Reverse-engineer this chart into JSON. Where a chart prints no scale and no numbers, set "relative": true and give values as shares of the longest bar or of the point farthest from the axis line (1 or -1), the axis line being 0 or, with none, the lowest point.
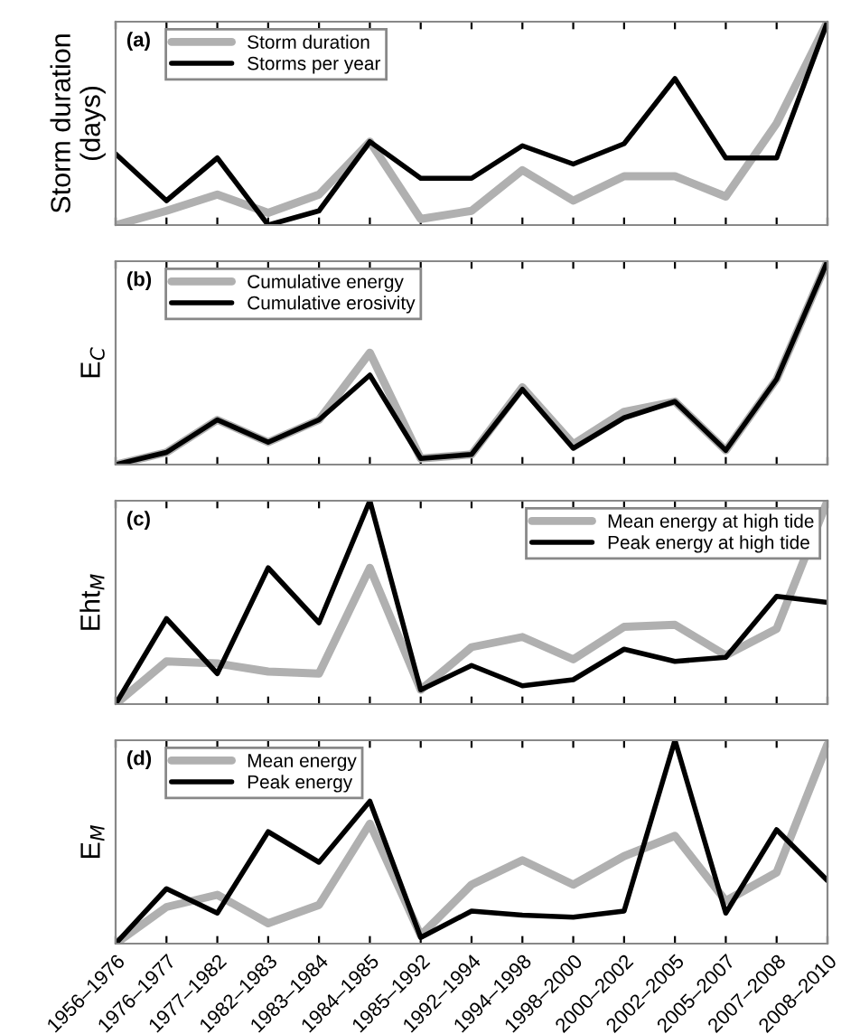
{
  "chart_data": [
    {
      "type": "line",
      "title": "(a)",
      "ylabel": "Storm duration\n(days)",
      "relative": true,
      "tick_labels": false,
      "legend": "top left",
      "grid": false,
      "categories": [
        null,
        null,
        null,
        null,
        null,
        null,
        null,
        null,
        null,
        null,
        null,
        null,
        null,
        null,
        null
      ],
      "series": [
        {
          "name": "Storm duration",
          "color": "#b0b0b0",
          "values": [
            0,
            0.07,
            0.15,
            0.06,
            0.15,
            0.41,
            0.03,
            0.07,
            0.27,
            0.12,
            0.24,
            0.24,
            0.14,
            0.5,
            1
          ]
        },
        {
          "name": "Storms per year",
          "color": "#000000",
          "values": [
            0.35,
            0.12,
            0.33,
            0,
            0.07,
            0.41,
            0.23,
            0.23,
            0.39,
            0.3,
            0.4,
            0.72,
            0.33,
            0.33,
            1
          ]
        }
      ]
    },
    {
      "type": "line",
      "title": "(b)",
      "ylabel": "E$_{C}$",
      "relative": true,
      "tick_labels": false,
      "legend": "top left",
      "grid": false,
      "categories": [
        null,
        null,
        null,
        null,
        null,
        null,
        null,
        null,
        null,
        null,
        null,
        null,
        null,
        null,
        null
      ],
      "series": [
        {
          "name": "Cumulative energy",
          "color": "#b0b0b0",
          "values": [
            0,
            0.06,
            0.22,
            0.11,
            0.22,
            0.55,
            0.03,
            0.05,
            0.38,
            0.1,
            0.26,
            0.31,
            0.07,
            0.42,
            1
          ]
        },
        {
          "name": "Cumulative erosivity",
          "color": "#000000",
          "values": [
            0,
            0.06,
            0.22,
            0.11,
            0.22,
            0.44,
            0.03,
            0.05,
            0.37,
            0.08,
            0.23,
            0.31,
            0.07,
            0.42,
            1
          ]
        }
      ]
    },
    {
      "type": "line",
      "title": "(c)",
      "ylabel": "Eht$_{M}$",
      "relative": true,
      "tick_labels": false,
      "legend": "top right",
      "grid": false,
      "categories": [
        null,
        null,
        null,
        null,
        null,
        null,
        null,
        null,
        null,
        null,
        null,
        null,
        null,
        null,
        null
      ],
      "series": [
        {
          "name": "Mean energy at high tide",
          "color": "#b0b0b0",
          "values": [
            0,
            0.21,
            0.2,
            0.16,
            0.15,
            0.67,
            0.07,
            0.28,
            0.33,
            0.22,
            0.38,
            0.39,
            0.24,
            0.37,
            1
          ]
        },
        {
          "name": "Peak energy at high tide",
          "color": "#000000",
          "values": [
            0,
            0.42,
            0.15,
            0.67,
            0.4,
            1,
            0.07,
            0.19,
            0.09,
            0.12,
            0.27,
            0.21,
            0.23,
            0.53,
            0.5
          ]
        }
      ]
    },
    {
      "type": "line",
      "title": "(d)",
      "ylabel": "E$_{M}$",
      "relative": true,
      "tick_labels": "x",
      "legend": "top left",
      "grid": false,
      "categories": [
        "1956–1976",
        "1976–1977",
        "1977–1982",
        "1982–1983",
        "1983–1984",
        "1984–1985",
        "1985–1992",
        "1992–1994",
        "1994–1998",
        "1998–2000",
        "2000–2002",
        "2002–2005",
        "2005–2007",
        "2007–2008",
        "2008–2010"
      ],
      "series": [
        {
          "name": "Mean energy",
          "color": "#b0b0b0",
          "values": [
            0,
            0.18,
            0.24,
            0.1,
            0.19,
            0.59,
            0.04,
            0.29,
            0.41,
            0.29,
            0.43,
            0.53,
            0.21,
            0.35,
            0.98
          ]
        },
        {
          "name": "Peak energy",
          "color": "#000000",
          "values": [
            0,
            0.27,
            0.15,
            0.55,
            0.4,
            0.7,
            0.03,
            0.16,
            0.14,
            0.13,
            0.16,
            1,
            0.15,
            0.56,
            0.31
          ]
        }
      ]
    }
  ]
}
